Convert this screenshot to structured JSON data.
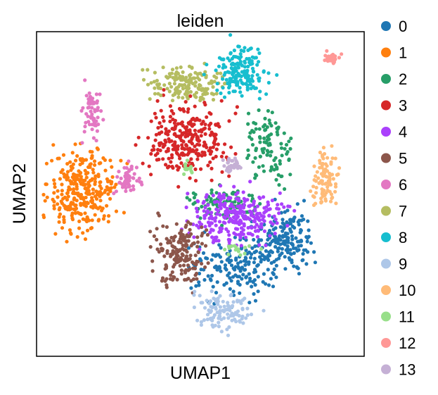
{
  "chart_data": {
    "type": "scatter",
    "title": "leiden",
    "xlabel": "UMAP1",
    "ylabel": "UMAP2",
    "xlim": [
      0,
      100
    ],
    "ylim": [
      0,
      100
    ],
    "ticks": false,
    "grid": false,
    "legend_position": "right",
    "series": [
      {
        "name": "0",
        "color": "#1f77b4",
        "n": 340,
        "clusters": [
          {
            "cx": 60,
            "cy": 28,
            "rx": 13,
            "ry": 9
          },
          {
            "cx": 76,
            "cy": 36,
            "rx": 8,
            "ry": 9
          }
        ]
      },
      {
        "name": "1",
        "color": "#ff7f0e",
        "n": 300,
        "clusters": [
          {
            "cx": 14,
            "cy": 51,
            "rx": 10,
            "ry": 12
          }
        ]
      },
      {
        "name": "2",
        "color": "#279e68",
        "n": 200,
        "clusters": [
          {
            "cx": 71,
            "cy": 64,
            "rx": 7,
            "ry": 11
          },
          {
            "cx": 58,
            "cy": 47,
            "rx": 10,
            "ry": 5
          }
        ]
      },
      {
        "name": "3",
        "color": "#d62728",
        "n": 280,
        "clusters": [
          {
            "cx": 46,
            "cy": 67,
            "rx": 12,
            "ry": 11
          }
        ]
      },
      {
        "name": "4",
        "color": "#aa40fc",
        "n": 270,
        "clusters": [
          {
            "cx": 61,
            "cy": 43,
            "rx": 14,
            "ry": 8
          }
        ]
      },
      {
        "name": "5",
        "color": "#8c564b",
        "n": 170,
        "clusters": [
          {
            "cx": 44,
            "cy": 32,
            "rx": 8,
            "ry": 10
          }
        ]
      },
      {
        "name": "6",
        "color": "#e377c2",
        "n": 120,
        "clusters": [
          {
            "cx": 17,
            "cy": 76,
            "rx": 3.5,
            "ry": 8
          },
          {
            "cx": 28,
            "cy": 54,
            "rx": 4,
            "ry": 5
          }
        ]
      },
      {
        "name": "7",
        "color": "#b5bd61",
        "n": 160,
        "clusters": [
          {
            "cx": 46,
            "cy": 84,
            "rx": 11,
            "ry": 5
          }
        ]
      },
      {
        "name": "8",
        "color": "#17becf",
        "n": 160,
        "clusters": [
          {
            "cx": 62,
            "cy": 88,
            "rx": 8,
            "ry": 8
          }
        ]
      },
      {
        "name": "9",
        "color": "#aec7e8",
        "n": 110,
        "clusters": [
          {
            "cx": 57,
            "cy": 14,
            "rx": 9,
            "ry": 6
          }
        ]
      },
      {
        "name": "10",
        "color": "#ffbb78",
        "n": 90,
        "clusters": [
          {
            "cx": 88,
            "cy": 55,
            "rx": 4,
            "ry": 9
          }
        ]
      },
      {
        "name": "11",
        "color": "#98df8a",
        "n": 30,
        "clusters": [
          {
            "cx": 62,
            "cy": 33,
            "rx": 5,
            "ry": 2
          },
          {
            "cx": 46,
            "cy": 58,
            "rx": 2,
            "ry": 2
          }
        ]
      },
      {
        "name": "12",
        "color": "#ff9896",
        "n": 30,
        "clusters": [
          {
            "cx": 90,
            "cy": 92,
            "rx": 3,
            "ry": 2
          }
        ]
      },
      {
        "name": "13",
        "color": "#c5b0d5",
        "n": 30,
        "clusters": [
          {
            "cx": 60,
            "cy": 59,
            "rx": 3,
            "ry": 2
          }
        ]
      }
    ]
  }
}
